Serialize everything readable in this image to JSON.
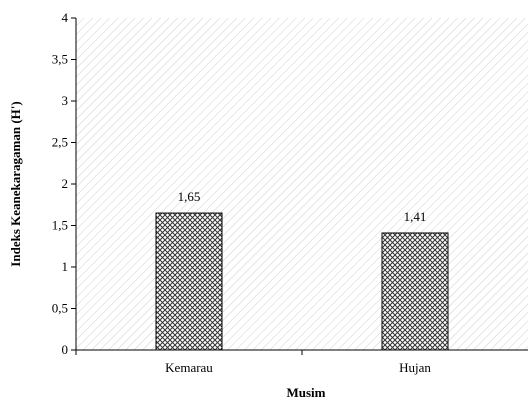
{
  "chart_data": {
    "type": "bar",
    "title": "",
    "xlabel": "Musim",
    "ylabel": "Indeks Keanekaragaman (H')",
    "categories": [
      "Kemarau",
      "Hujan"
    ],
    "values": [
      1.65,
      1.41
    ],
    "data_labels": [
      "1,65",
      "1,41"
    ],
    "ylim": [
      0,
      4
    ],
    "yticks": [
      0,
      0.5,
      1,
      1.5,
      2,
      2.5,
      3,
      3.5,
      4
    ],
    "ytick_labels": [
      "0",
      "0,5",
      "1",
      "1,5",
      "2",
      "2,5",
      "3",
      "3,5",
      "4"
    ],
    "grid": false,
    "legend": "none",
    "plot_background": "diagonal-hatch",
    "bar_fill": "crosshatch",
    "colors": {
      "axis": "#000000",
      "bar_stroke": "#000000",
      "hatch": "#c8c8c8"
    }
  }
}
